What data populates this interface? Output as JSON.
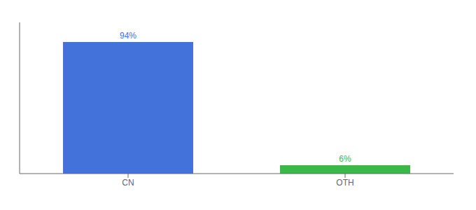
{
  "chart_data": {
    "type": "bar",
    "categories": [
      "CN",
      "OTH"
    ],
    "values": [
      94,
      6
    ],
    "value_labels": [
      "94%",
      "6%"
    ],
    "colors": [
      "#4472db",
      "#3cb84a"
    ],
    "ylim": [
      0,
      108
    ],
    "data_labels": true,
    "tick_labels": "x",
    "grid": false
  }
}
